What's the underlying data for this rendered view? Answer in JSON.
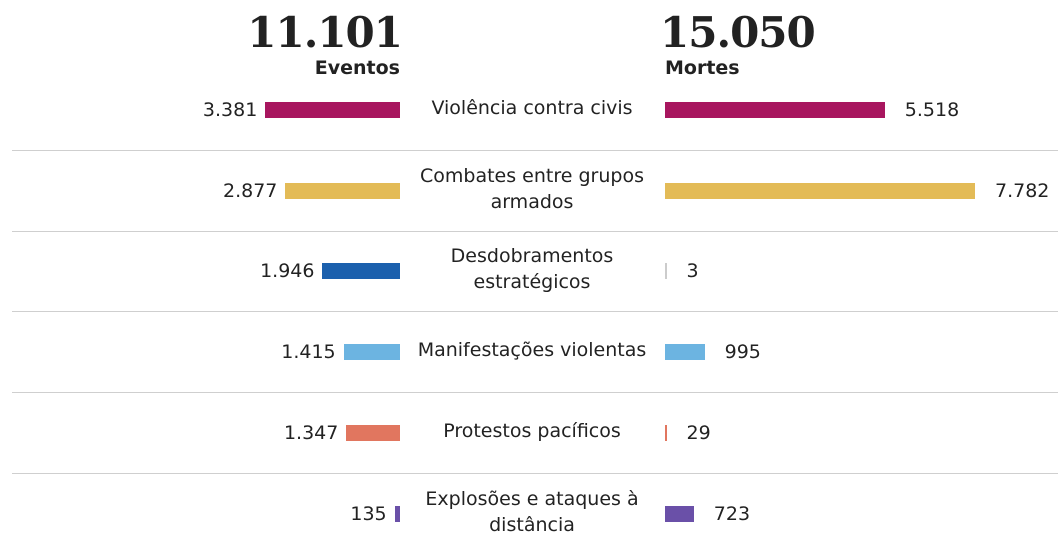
{
  "chart_data": {
    "type": "butterfly-bar",
    "categories": [
      "Violência contra civis",
      "Combates entre grupos armados",
      "Desdobramentos estratégicos",
      "Manifestações violentas",
      "Protestos pacíficos",
      "Explosões e ataques à distância"
    ],
    "colors": [
      "#a8165f",
      "#e3bb57",
      "#1b60ad",
      "#6cb4e1",
      "#e1765f",
      "#6a50a8"
    ],
    "series": [
      {
        "name": "Eventos",
        "total": "11.101",
        "values": [
          3381,
          2877,
          1946,
          1415,
          1347,
          135
        ],
        "value_labels": [
          "3.381",
          "2.877",
          "1.946",
          "1.415",
          "1.347",
          "135"
        ]
      },
      {
        "name": "Mortes",
        "total": "15.050",
        "values": [
          5518,
          7782,
          3,
          995,
          29,
          723
        ],
        "value_labels": [
          "5.518",
          "7.782",
          "3",
          "995",
          "29",
          "723"
        ]
      }
    ]
  }
}
